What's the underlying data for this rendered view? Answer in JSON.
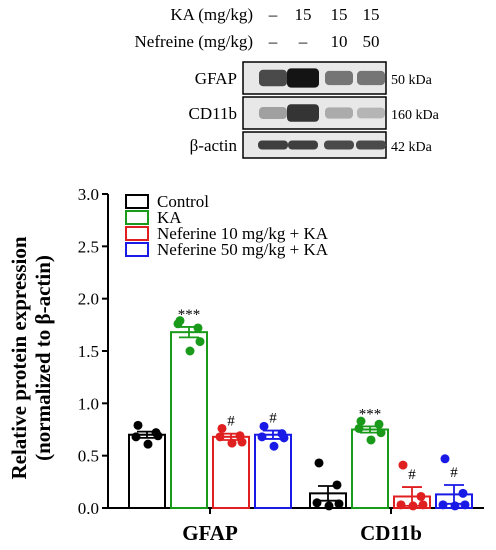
{
  "blot": {
    "treatments": [
      {
        "label": "KA (mg/kg)",
        "values": [
          "–",
          "15",
          "15",
          "15"
        ]
      },
      {
        "label": "Nefreine (mg/kg)",
        "values": [
          "–",
          "–",
          "10",
          "50"
        ]
      }
    ],
    "rows": [
      {
        "protein": "GFAP",
        "size": "50 kDa",
        "intensities": [
          0.75,
          1.0,
          0.55,
          0.55
        ]
      },
      {
        "protein": "CD11b",
        "size": "160 kDa",
        "intensities": [
          0.35,
          0.85,
          0.3,
          0.25
        ]
      },
      {
        "protein": "β-actin",
        "size": "42 kDa",
        "intensities": [
          0.8,
          0.8,
          0.75,
          0.75
        ]
      }
    ]
  },
  "chart_data": {
    "type": "bar",
    "ylabel_line1": "Relative protein expression",
    "ylabel_line2": "(normalized to β-actin)",
    "ylim": [
      0,
      3.0
    ],
    "yticks": [
      "0.0",
      "0.5",
      "1.0",
      "1.5",
      "2.0",
      "2.5",
      "3.0"
    ],
    "categories": [
      "GFAP",
      "CD11b"
    ],
    "legend_position": "top-left",
    "series": [
      {
        "name": "Control",
        "color": "#000000",
        "values": [
          0.7,
          0.14
        ],
        "errors": [
          0.03,
          0.07
        ],
        "points": [
          [
            0.79,
            0.72,
            0.68,
            0.69,
            0.61
          ],
          [
            0.43,
            0.22,
            0.05,
            0.04,
            0.02
          ]
        ],
        "annotations": [
          "",
          ""
        ]
      },
      {
        "name": "KA",
        "color": "#1a9a1a",
        "values": [
          1.68,
          0.75
        ],
        "errors": [
          0.05,
          0.03
        ],
        "points": [
          [
            1.79,
            1.72,
            1.76,
            1.59,
            1.5
          ],
          [
            0.83,
            0.8,
            0.76,
            0.72,
            0.65
          ]
        ],
        "annotations": [
          "***",
          "***"
        ]
      },
      {
        "name": "Neferine 10 mg/kg + KA",
        "color": "#e02020",
        "values": [
          0.68,
          0.11
        ],
        "errors": [
          0.03,
          0.09
        ],
        "points": [
          [
            0.76,
            0.69,
            0.68,
            0.63,
            0.62
          ],
          [
            0.41,
            0.11,
            0.03,
            0.03,
            0.02
          ]
        ],
        "annotations": [
          "#",
          "#"
        ]
      },
      {
        "name": "Neferine 50 mg/kg + KA",
        "color": "#1a1ae6",
        "values": [
          0.7,
          0.13
        ],
        "errors": [
          0.04,
          0.09
        ],
        "points": [
          [
            0.78,
            0.71,
            0.68,
            0.67,
            0.59
          ],
          [
            0.47,
            0.14,
            0.03,
            0.03,
            0.02
          ]
        ],
        "annotations": [
          "#",
          "#"
        ]
      }
    ]
  }
}
